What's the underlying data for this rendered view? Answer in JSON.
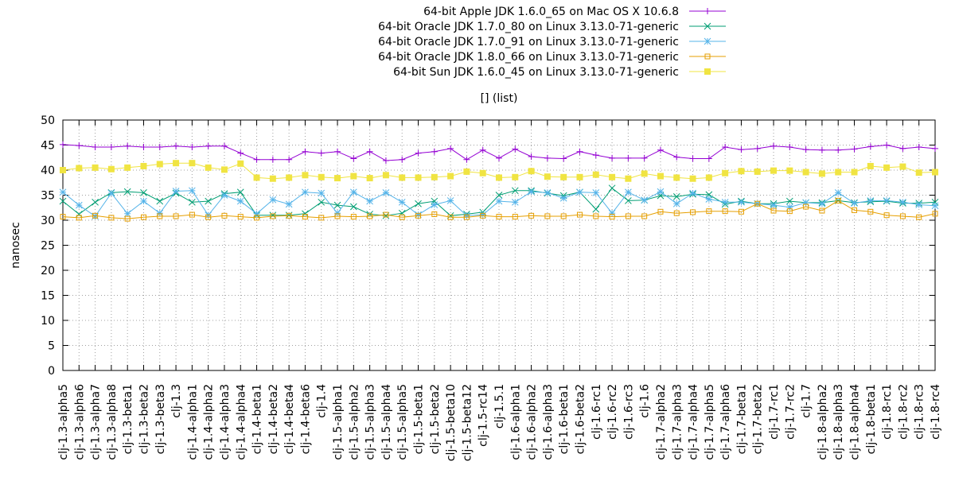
{
  "chart_data": {
    "type": "line",
    "title": "[] (list)",
    "xlabel": "",
    "ylabel": "nanosec",
    "ylim": [
      0,
      50
    ],
    "yticks": [
      0,
      5,
      10,
      15,
      20,
      25,
      30,
      35,
      40,
      45,
      50
    ],
    "grid": true,
    "legend_position": "top",
    "categories": [
      "clj-1.3-alpha5",
      "clj-1.3-alpha6",
      "clj-1.3-alpha7",
      "clj-1.3-alpha8",
      "clj-1.3-beta1",
      "clj-1.3-beta2",
      "clj-1.3-beta3",
      "clj-1.3",
      "clj-1.4-alpha1",
      "clj-1.4-alpha2",
      "clj-1.4-alpha3",
      "clj-1.4-alpha4",
      "clj-1.4-beta1",
      "clj-1.4-beta2",
      "clj-1.4-beta4",
      "clj-1.4-beta6",
      "clj-1.4",
      "clj-1.5-alpha1",
      "clj-1.5-alpha2",
      "clj-1.5-alpha3",
      "clj-1.5-alpha4",
      "clj-1.5-alpha5",
      "clj-1.5-beta1",
      "clj-1.5-beta2",
      "clj-1.5-beta10",
      "clj-1.5-beta12",
      "clj-1.5-rc14",
      "clj-1.5.1",
      "clj-1.6-alpha1",
      "clj-1.6-alpha2",
      "clj-1.6-alpha3",
      "clj-1.6-beta1",
      "clj-1.6-beta2",
      "clj-1.6-rc1",
      "clj-1.6-rc2",
      "clj-1.6-rc3",
      "clj-1.6",
      "clj-1.7-alpha2",
      "clj-1.7-alpha3",
      "clj-1.7-alpha4",
      "clj-1.7-alpha5",
      "clj-1.7-alpha6",
      "clj-1.7-beta1",
      "clj-1.7-beta2",
      "clj-1.7-rc1",
      "clj-1.7-rc2",
      "clj-1.7",
      "clj-1.8-alpha2",
      "clj-1.8-alpha3",
      "clj-1.8-alpha4",
      "clj-1.8-beta1",
      "clj-1.8-rc1",
      "clj-1.8-rc2",
      "clj-1.8-rc3",
      "clj-1.8-rc4"
    ],
    "series": [
      {
        "name": "64-bit Apple JDK 1.6.0_65 on Mac OS X 10.6.8",
        "color": "#9400d3",
        "marker": "plus",
        "values": [
          45.1,
          44.9,
          44.6,
          44.6,
          44.8,
          44.6,
          44.6,
          44.8,
          44.6,
          44.8,
          44.8,
          43.4,
          42.1,
          42.1,
          42.1,
          43.7,
          43.4,
          43.7,
          42.3,
          43.7,
          41.9,
          42.1,
          43.4,
          43.7,
          44.3,
          42.1,
          44.0,
          42.4,
          44.2,
          42.7,
          42.4,
          42.3,
          43.7,
          43.0,
          42.4,
          42.4,
          42.4,
          44.0,
          42.6,
          42.3,
          42.3,
          44.6,
          44.1,
          44.3,
          44.8,
          44.6,
          44.1,
          44.0,
          44.0,
          44.2,
          44.7,
          45.0,
          44.3,
          44.6,
          44.3
        ]
      },
      {
        "name": "64-bit Oracle JDK 1.7.0_80 on Linux 3.13.0-71-generic",
        "color": "#009e73",
        "marker": "x",
        "values": [
          33.8,
          31.2,
          33.6,
          35.5,
          35.7,
          35.5,
          33.8,
          35.4,
          33.6,
          33.8,
          35.3,
          35.6,
          31.0,
          31.0,
          31.0,
          31.3,
          33.6,
          33.0,
          32.7,
          31.2,
          30.9,
          31.4,
          33.3,
          33.8,
          30.9,
          31.2,
          31.6,
          35.0,
          35.9,
          35.9,
          35.4,
          34.9,
          35.6,
          32.2,
          36.4,
          33.9,
          34.0,
          34.9,
          34.7,
          35.2,
          35.1,
          33.2,
          33.8,
          33.3,
          33.3,
          33.8,
          33.5,
          33.5,
          33.9,
          33.5,
          33.7,
          33.8,
          33.4,
          33.4,
          33.6
        ]
      },
      {
        "name": "64-bit Oracle JDK 1.7.0_91 on Linux 3.13.0-71-generic",
        "color": "#56b4e9",
        "marker": "star",
        "values": [
          35.6,
          33.0,
          30.8,
          35.4,
          31.3,
          33.8,
          31.4,
          35.8,
          35.9,
          31.0,
          35.0,
          33.8,
          31.3,
          34.1,
          33.2,
          35.6,
          35.4,
          31.4,
          35.6,
          33.8,
          35.5,
          33.6,
          31.1,
          33.1,
          33.9,
          30.9,
          31.1,
          33.8,
          33.6,
          35.7,
          35.5,
          34.4,
          35.6,
          35.5,
          31.4,
          35.6,
          34.0,
          35.7,
          33.3,
          35.4,
          34.2,
          33.6,
          33.6,
          33.3,
          33.0,
          32.6,
          33.5,
          33.3,
          35.5,
          33.4,
          33.9,
          33.9,
          33.6,
          33.1,
          32.9
        ]
      },
      {
        "name": "64-bit Oracle JDK 1.8.0_66 on Linux 3.13.0-71-generic",
        "color": "#e69f00",
        "marker": "square",
        "values": [
          30.7,
          30.5,
          30.9,
          30.5,
          30.3,
          30.6,
          30.8,
          30.8,
          31.1,
          30.6,
          30.9,
          30.7,
          30.5,
          30.8,
          30.9,
          30.7,
          30.5,
          30.8,
          30.7,
          30.8,
          31.1,
          30.6,
          30.9,
          31.2,
          30.6,
          30.6,
          30.9,
          30.7,
          30.7,
          30.9,
          30.8,
          30.8,
          31.1,
          30.8,
          30.7,
          30.8,
          30.8,
          31.7,
          31.4,
          31.6,
          31.8,
          31.8,
          31.7,
          33.3,
          31.9,
          31.8,
          32.7,
          31.9,
          33.9,
          32.0,
          31.7,
          31.0,
          30.8,
          30.6,
          31.3
        ]
      },
      {
        "name": "64-bit Sun JDK 1.6.0_45 on Linux 3.13.0-71-generic",
        "color": "#f0e442",
        "marker": "filled-square",
        "values": [
          40.0,
          40.4,
          40.5,
          40.2,
          40.5,
          40.8,
          41.2,
          41.4,
          41.4,
          40.5,
          40.1,
          41.3,
          38.5,
          38.3,
          38.5,
          39.0,
          38.6,
          38.4,
          38.8,
          38.4,
          39.0,
          38.5,
          38.5,
          38.6,
          38.8,
          39.7,
          39.4,
          38.5,
          38.6,
          39.8,
          38.7,
          38.6,
          38.6,
          39.1,
          38.6,
          38.3,
          39.3,
          38.8,
          38.5,
          38.3,
          38.5,
          39.4,
          39.8,
          39.7,
          39.9,
          39.9,
          39.6,
          39.3,
          39.6,
          39.6,
          40.8,
          40.5,
          40.7,
          39.5,
          39.6
        ]
      }
    ]
  }
}
